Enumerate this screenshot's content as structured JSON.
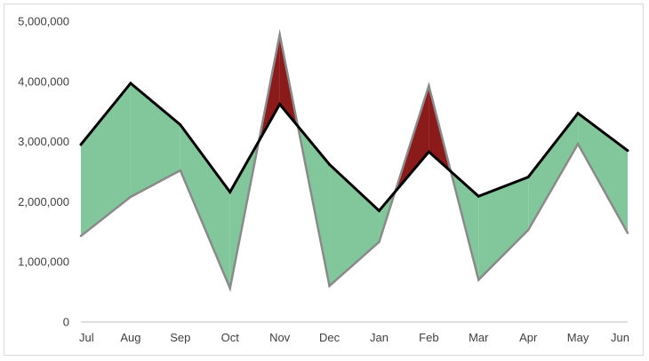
{
  "chart_data": {
    "type": "area",
    "title": "",
    "xlabel": "",
    "ylabel": "",
    "categories": [
      "Jul",
      "Aug",
      "Sep",
      "Oct",
      "Nov",
      "Dec",
      "Jan",
      "Feb",
      "Mar",
      "Apr",
      "May",
      "Jun"
    ],
    "ylim": [
      0,
      5000000
    ],
    "y_ticks": [
      0,
      1000000,
      2000000,
      3000000,
      4000000,
      5000000
    ],
    "y_tick_labels": [
      "0",
      "1,000,000",
      "2,000,000",
      "3,000,000",
      "4,000,000",
      "5,000,000"
    ],
    "grid": false,
    "legend": "none",
    "series": [
      {
        "role": "line",
        "values": [
          2950000,
          3970000,
          3280000,
          2160000,
          3620000,
          2620000,
          1850000,
          2830000,
          2090000,
          2410000,
          3470000,
          2850000
        ]
      },
      {
        "role": "band-edge",
        "values": [
          1430000,
          2080000,
          2520000,
          560000,
          4780000,
          600000,
          1330000,
          3930000,
          700000,
          1530000,
          2960000,
          1480000
        ]
      }
    ],
    "colors": {
      "line_above": "#82c79c",
      "band_above": "#8b1a1a",
      "band_line": "#000000",
      "band_edge": "#8a8a8a",
      "axis": "#bfbfbf"
    }
  }
}
